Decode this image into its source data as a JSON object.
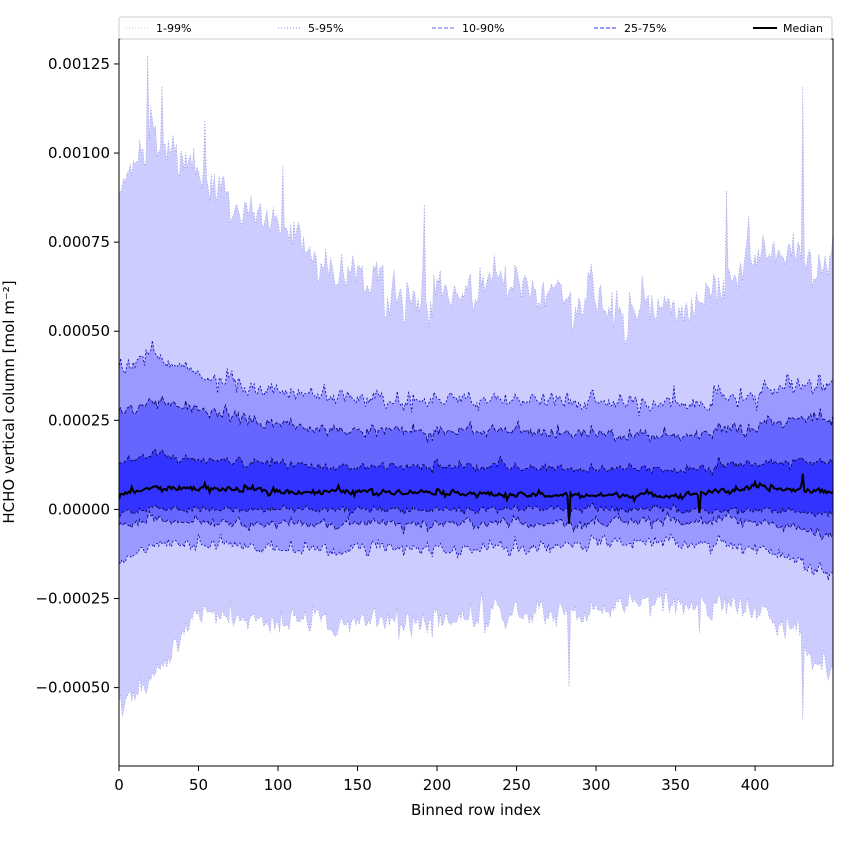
{
  "chart_data": {
    "type": "area",
    "title": "",
    "xlabel": "Binned row index",
    "ylabel": "HCHO vertical column [mol m⁻²]",
    "xlim": [
      0,
      449
    ],
    "ylim": [
      -0.00072,
      0.00132
    ],
    "xticks": [
      0,
      50,
      100,
      150,
      200,
      250,
      300,
      350,
      400
    ],
    "xtick_labels": [
      "0",
      "50",
      "100",
      "150",
      "200",
      "250",
      "300",
      "350",
      "400"
    ],
    "yticks": [
      -0.0005,
      -0.00025,
      0.0,
      0.00025,
      0.0005,
      0.00075,
      0.001,
      0.00125
    ],
    "ytick_labels": [
      "−0.00050",
      "−0.00025",
      "0.00000",
      "0.00025",
      "0.00050",
      "0.00075",
      "0.00100",
      "0.00125"
    ],
    "grid": false,
    "legend_position": "top",
    "n_rows": 450,
    "x_profile": [
      0,
      20,
      50,
      100,
      150,
      200,
      250,
      300,
      350,
      400,
      449
    ],
    "series": [
      {
        "name": "1-99%",
        "color": "#ccccff",
        "style": "dotted",
        "upper": [
          0.00085,
          0.00105,
          0.00095,
          0.00078,
          0.00064,
          0.0006,
          0.00062,
          0.00057,
          0.00054,
          0.00072,
          0.00072
        ],
        "lower": [
          -0.00055,
          -0.00049,
          -0.00028,
          -0.00032,
          -0.00031,
          -0.00031,
          -0.0003,
          -0.00029,
          -0.00027,
          -0.00027,
          -0.00045
        ]
      },
      {
        "name": "5-95%",
        "color": "#9999ff",
        "style": "dotted",
        "upper": [
          0.00038,
          0.00043,
          0.00038,
          0.00033,
          0.00031,
          0.00031,
          0.00031,
          0.0003,
          0.00029,
          0.00033,
          0.00036
        ],
        "lower": [
          -0.00016,
          -0.0001,
          -9e-05,
          -0.00011,
          -0.00011,
          -0.00011,
          -0.00011,
          -0.0001,
          -9e-05,
          -0.0001,
          -0.00018
        ]
      },
      {
        "name": "10-90%",
        "color": "#6666ff",
        "style": "dashed",
        "upper": [
          0.00027,
          0.0003,
          0.00028,
          0.00024,
          0.00022,
          0.00022,
          0.00022,
          0.00021,
          0.0002,
          0.00024,
          0.00026
        ],
        "lower": [
          -5e-05,
          -3e-05,
          -3e-05,
          -4e-05,
          -4e-05,
          -4e-05,
          -4e-05,
          -4e-05,
          -3e-05,
          -3e-05,
          -7e-05
        ]
      },
      {
        "name": "25-75%",
        "color": "#3333ff",
        "style": "dashed",
        "upper": [
          0.00013,
          0.00015,
          0.00014,
          0.00013,
          0.00012,
          0.00012,
          0.00012,
          0.00011,
          0.00011,
          0.00013,
          0.00014
        ],
        "lower": [
          -1e-05,
          0.0,
          0.0,
          0.0,
          0.0,
          0.0,
          0.0,
          0.0,
          0.0,
          0.0,
          -1e-05
        ]
      },
      {
        "name": "Median",
        "color": "#000000",
        "style": "solid",
        "values": [
          4e-05,
          6e-05,
          6e-05,
          5e-05,
          5e-05,
          5e-05,
          4e-05,
          4e-05,
          4e-05,
          6e-05,
          5e-05
        ]
      }
    ],
    "spikes": [
      {
        "x": 18,
        "upper": 0.00123
      },
      {
        "x": 27,
        "upper": 0.0012
      },
      {
        "x": 54,
        "upper": 0.00108
      },
      {
        "x": 103,
        "upper": 0.00091
      },
      {
        "x": 192,
        "upper": 0.00082
      },
      {
        "x": 283,
        "lower": -0.00049,
        "median": -4e-05
      },
      {
        "x": 365,
        "lower": -0.00036,
        "median": -1e-05
      },
      {
        "x": 382,
        "upper": 0.00091
      },
      {
        "x": 430,
        "upper": 0.00117,
        "lower": -0.00062,
        "median": 0.0001
      }
    ]
  }
}
